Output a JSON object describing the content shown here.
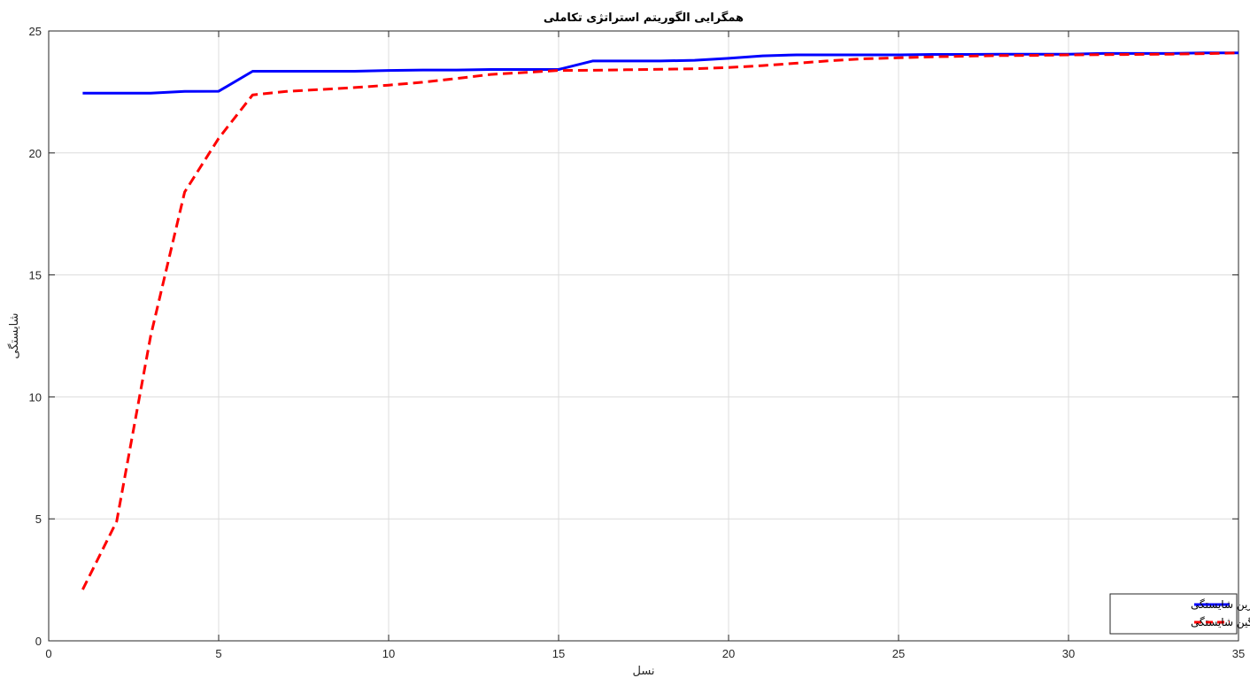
{
  "chart_data": {
    "type": "line",
    "title": "همگرایی الگوریتم استراتژی تکاملی",
    "xlabel": "نسل",
    "ylabel": "شایستگی",
    "xlim": [
      0,
      35
    ],
    "ylim": [
      0,
      25
    ],
    "xticks": [
      0,
      5,
      10,
      15,
      20,
      25,
      30,
      35
    ],
    "yticks": [
      0,
      5,
      10,
      15,
      20,
      25
    ],
    "grid": true,
    "legend_position": "bottom-right",
    "x": [
      1,
      2,
      3,
      4,
      5,
      6,
      7,
      8,
      9,
      10,
      11,
      12,
      13,
      14,
      15,
      16,
      17,
      18,
      19,
      20,
      21,
      22,
      23,
      24,
      25,
      26,
      27,
      28,
      29,
      30,
      31,
      32,
      33,
      34,
      35
    ],
    "series": [
      {
        "name": "بهترین شایستگی",
        "color": "#0000ff",
        "style": "solid",
        "values": [
          22.45,
          22.45,
          22.45,
          22.52,
          22.53,
          23.35,
          23.35,
          23.35,
          23.35,
          23.38,
          23.4,
          23.4,
          23.42,
          23.42,
          23.42,
          23.77,
          23.77,
          23.77,
          23.8,
          23.88,
          23.98,
          24.02,
          24.02,
          24.02,
          24.02,
          24.04,
          24.04,
          24.05,
          24.05,
          24.05,
          24.08,
          24.08,
          24.08,
          24.1,
          24.1
        ]
      },
      {
        "name": "میانگین شایستگی",
        "color": "#ff0000",
        "style": "dashed",
        "values": [
          2.1,
          4.9,
          12.5,
          18.4,
          20.6,
          22.38,
          22.52,
          22.6,
          22.68,
          22.78,
          22.9,
          23.05,
          23.22,
          23.3,
          23.38,
          23.39,
          23.41,
          23.43,
          23.45,
          23.5,
          23.58,
          23.68,
          23.78,
          23.86,
          23.9,
          23.94,
          23.97,
          23.99,
          24.0,
          24.02,
          24.03,
          24.04,
          24.05,
          24.07,
          24.1
        ]
      }
    ]
  }
}
